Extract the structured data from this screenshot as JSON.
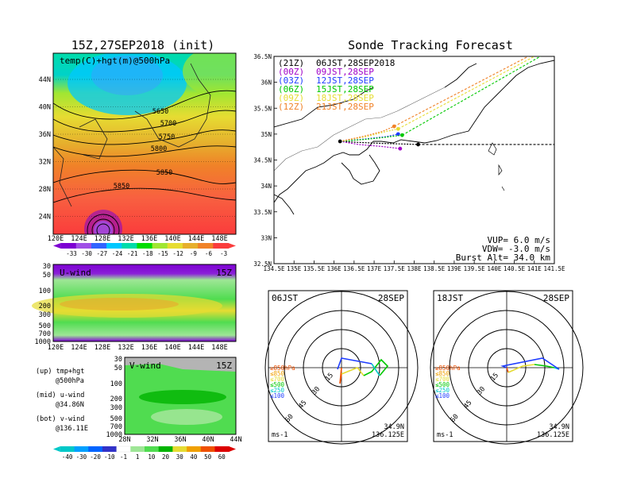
{
  "left_title": "15Z,27SEP2018 (init)",
  "right_title": "Sonde Tracking Forecast",
  "colors": {
    "ramp_temp": [
      "#7d00d2",
      "#a050e6",
      "#3264ff",
      "#00c8ff",
      "#00dcaa",
      "#00dc00",
      "#a0e632",
      "#e6dc32",
      "#e6af2d",
      "#f08228",
      "#fa3c3c"
    ],
    "ramp_wind": [
      "#00c8c8",
      "#00a0ff",
      "#0064ff",
      "#3232c8",
      "#ffffff",
      "#9ee696",
      "#50dc50",
      "#00b400",
      "#e6dc32",
      "#f0a000",
      "#f05000",
      "#dc0000"
    ],
    "track_21z": "#000000",
    "track_00z": "#a000c8",
    "track_03z": "#1e3cff",
    "track_06z": "#00c800",
    "track_09z": "#e6dc32",
    "track_12z": "#f08228"
  },
  "map_panel": {
    "label": "temp(C)+hgt(m)@500hPa",
    "contour_labels": [
      "5650",
      "5700",
      "5750",
      "5800",
      "5850",
      "5850"
    ],
    "lat_ticks": [
      "44N",
      "40N",
      "36N",
      "32N",
      "28N",
      "24N"
    ],
    "lon_ticks": [
      "120E",
      "124E",
      "128E",
      "132E",
      "136E",
      "140E",
      "144E",
      "148E"
    ],
    "colorbar_labels": [
      "-33",
      "-30",
      "-27",
      "-24",
      "-21",
      "-18",
      "-15",
      "-12",
      "-9",
      "-6",
      "-3"
    ]
  },
  "u_panel": {
    "label": "U-wind",
    "time": "15Z",
    "p_ticks": [
      "30",
      "50",
      "100",
      "200",
      "300",
      "500",
      "700",
      "1000"
    ],
    "lon_ticks": [
      "120E",
      "124E",
      "128E",
      "132E",
      "136E",
      "140E",
      "144E",
      "148E"
    ]
  },
  "v_panel": {
    "label": "V-wind",
    "time": "15Z",
    "p_ticks": [
      "30",
      "50",
      "100",
      "200",
      "300",
      "500",
      "700",
      "1000"
    ],
    "lat_ticks": [
      "28N",
      "32N",
      "36N",
      "40N",
      "44N"
    ],
    "colorbar_labels": [
      "-40",
      "-30",
      "-20",
      "-10",
      "-1",
      "1",
      "10",
      "20",
      "30",
      "40",
      "50",
      "60"
    ]
  },
  "legend_text": [
    {
      "a": "(up) tmp+hgt",
      "b": "@500hPa"
    },
    {
      "a": "(mid) u-wind",
      "b": "@34.86N"
    },
    {
      "a": "(bot) v-wind",
      "b": "@136.11E"
    }
  ],
  "track_map": {
    "lat_ticks": [
      "36.5N",
      "36N",
      "35.5N",
      "35N",
      "34.5N",
      "34N",
      "33.5N",
      "33N",
      "32.5N"
    ],
    "lon_ticks": [
      "134.5E",
      "135E",
      "135.5E",
      "136E",
      "136.5E",
      "137E",
      "137.5E",
      "138E",
      "138.5E",
      "139E",
      "139.5E",
      "140E",
      "140.5E",
      "141E",
      "141.5E"
    ],
    "legend": [
      {
        "code": "(21Z)",
        "time": "06JST,28SEP2018",
        "key": "track_21z"
      },
      {
        "code": "(00Z)",
        "time": "09JST,28SEP",
        "key": "track_00z"
      },
      {
        "code": "(03Z)",
        "time": "12JST,28SEP",
        "key": "track_03z"
      },
      {
        "code": "(06Z)",
        "time": "15JST,28SEP",
        "key": "track_06z"
      },
      {
        "code": "(09Z)",
        "time": "18JST,28SEP",
        "key": "track_09z"
      },
      {
        "code": "(12Z)",
        "time": "21JST,28SEP",
        "key": "track_12z"
      }
    ],
    "info": [
      "VUP= 6.0 m/s",
      "VDW= -3.0 m/s",
      "Burst Alt= 34.0 km"
    ]
  },
  "hodographs": [
    {
      "time": "06JST",
      "date": "28SEP",
      "lat": "34.9N",
      "lon": "136.125E"
    },
    {
      "time": "18JST",
      "date": "28SEP",
      "lat": "34.9N",
      "lon": "136.125E"
    }
  ],
  "hodo_levels": [
    {
      "label": "≥850hPa",
      "color": "#f05000"
    },
    {
      "label": "≤850",
      "color": "#f0a000"
    },
    {
      "label": "≤700",
      "color": "#e6dc32"
    },
    {
      "label": "≤500",
      "color": "#00c800"
    },
    {
      "label": "≤250",
      "color": "#00c8c8"
    },
    {
      "label": "≤100",
      "color": "#1e3cff"
    }
  ],
  "hodo_rings": [
    "15",
    "30",
    "45",
    "60"
  ],
  "hodo_unit": "ms-1",
  "chart_data": {
    "type": "line",
    "title": "Sonde Tracking Forecast",
    "xlim": [
      134.5,
      141.5
    ],
    "ylim": [
      32.5,
      36.5
    ],
    "launch": [
      136.15,
      34.86
    ],
    "series": [
      {
        "name": "(21Z) 06JST,28SEP2018",
        "x": [
          136.15,
          136.6,
          137.2,
          137.7,
          138.1
        ],
        "y": [
          34.86,
          34.84,
          34.82,
          34.81,
          34.8
        ],
        "ascent_x": [
          138.1,
          141.5
        ],
        "ascent_y": [
          34.8,
          34.8
        ]
      },
      {
        "name": "(00Z) 09JST,28SEP",
        "x": [
          136.15,
          136.6,
          137.2,
          137.65
        ],
        "y": [
          34.86,
          34.8,
          34.76,
          34.72
        ],
        "ascent_x": [],
        "ascent_y": []
      },
      {
        "name": "(03Z) 12JST,28SEP",
        "x": [
          136.15,
          136.7,
          137.3,
          137.6
        ],
        "y": [
          34.86,
          34.9,
          34.95,
          35.0
        ],
        "ascent_x": [],
        "ascent_y": []
      },
      {
        "name": "(06Z) 15JST,28SEP",
        "x": [
          136.15,
          136.8,
          137.3,
          137.7
        ],
        "y": [
          34.86,
          34.9,
          34.94,
          34.98
        ],
        "ascent_x": [
          137.7,
          141.15
        ],
        "ascent_y": [
          34.98,
          36.5
        ]
      },
      {
        "name": "(09Z) 18JST,28SEP",
        "x": [
          136.15,
          136.8,
          137.3,
          137.6
        ],
        "y": [
          34.86,
          34.95,
          35.05,
          35.1
        ],
        "ascent_x": [
          137.6,
          141.0
        ],
        "ascent_y": [
          35.1,
          36.5
        ]
      },
      {
        "name": "(12Z) 21JST,28SEP",
        "x": [
          136.15,
          136.7,
          137.2,
          137.5
        ],
        "y": [
          34.86,
          34.95,
          35.05,
          35.15
        ],
        "ascent_x": [
          137.5,
          140.85
        ],
        "ascent_y": [
          35.15,
          36.5
        ]
      }
    ]
  }
}
